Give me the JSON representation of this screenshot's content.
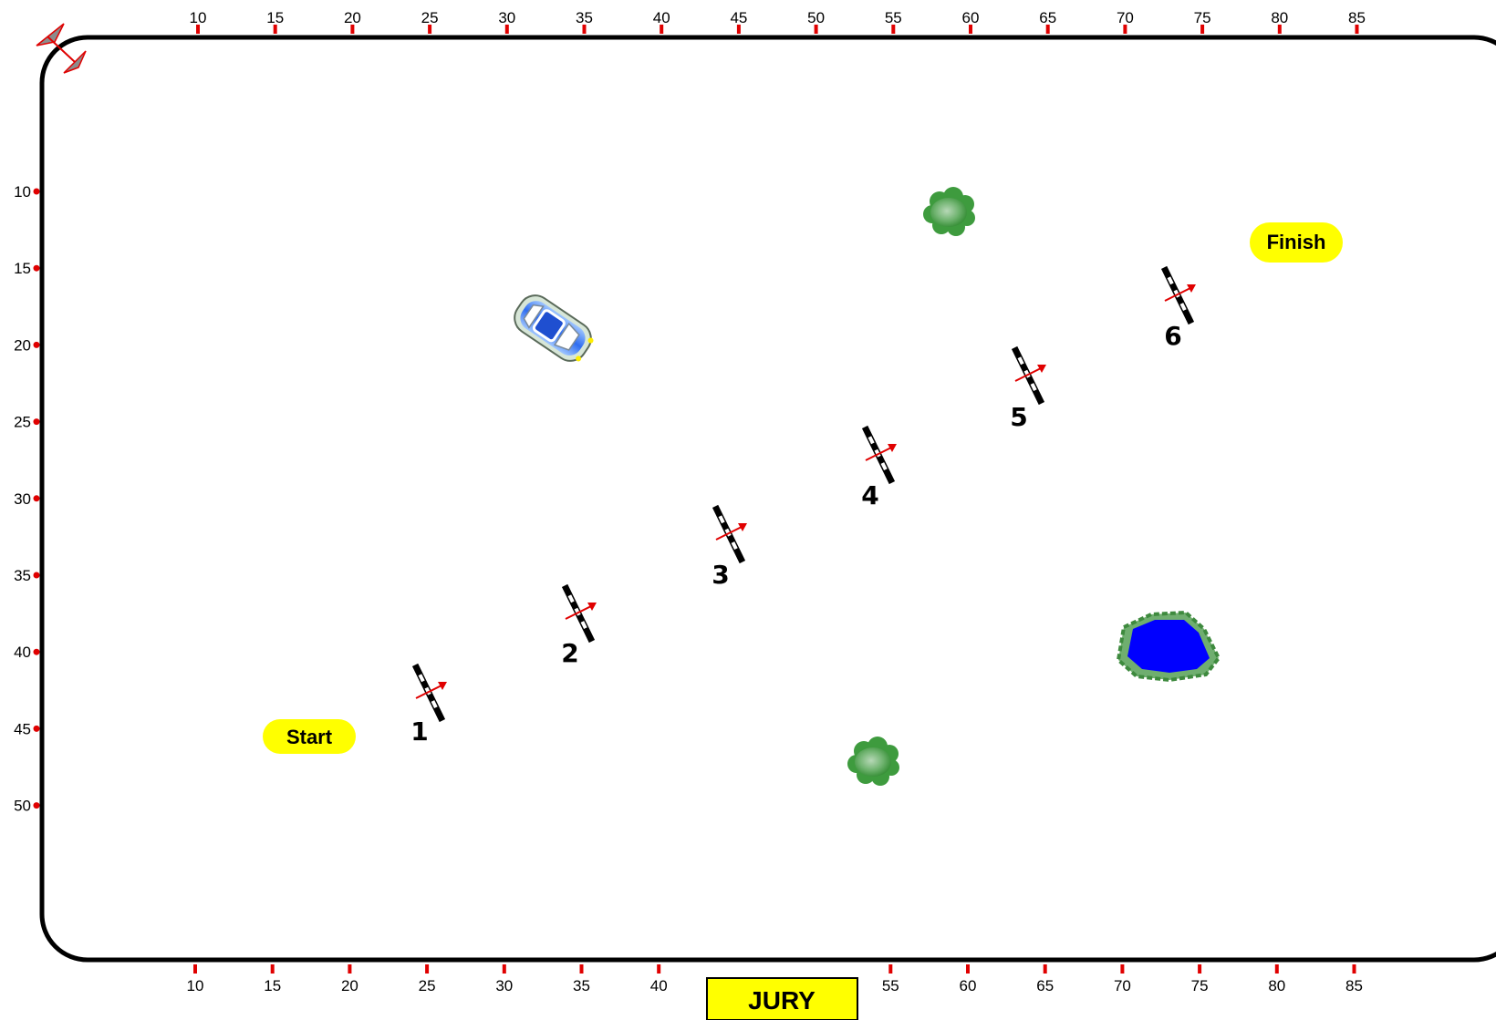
{
  "axes": {
    "top_ticks": [
      "10",
      "15",
      "20",
      "25",
      "30",
      "35",
      "40",
      "45",
      "50",
      "55",
      "60",
      "65",
      "70",
      "75",
      "80",
      "85"
    ],
    "bottom_ticks": [
      "10",
      "15",
      "20",
      "25",
      "30",
      "35",
      "40",
      "55",
      "60",
      "65",
      "70",
      "75",
      "80",
      "85"
    ],
    "left_ticks": [
      "10",
      "15",
      "20",
      "25",
      "30",
      "35",
      "40",
      "45",
      "50"
    ]
  },
  "fences": [
    "1",
    "2",
    "3",
    "4",
    "5",
    "6"
  ],
  "labels": {
    "start": "Start",
    "finish": "Finish",
    "jury": "JURY"
  },
  "colors": {
    "tick_mark": "#e00000",
    "pill_fill": "#ffff00",
    "jury_fill": "#ffff00",
    "pond_water": "#0000ff",
    "bush": "#3e9b3e",
    "fence_arrow": "#e00000"
  },
  "icons": {
    "compass": "compass-arrows-icon",
    "car": "car-icon",
    "bush": "bush-icon",
    "pond": "pond-icon"
  }
}
